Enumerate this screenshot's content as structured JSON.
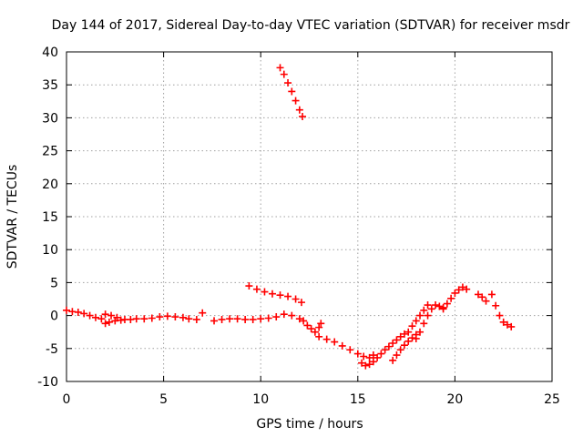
{
  "chart_data": {
    "type": "scatter",
    "title": "Day 144 of 2017, Sidereal Day-to-day VTEC variation (SDTVAR) for receiver msdr",
    "xlabel": "GPS time / hours",
    "ylabel": "SDTVAR / TECUs",
    "xlim": [
      0,
      25
    ],
    "ylim": [
      -10,
      40
    ],
    "xticks": [
      "0",
      "5",
      "10",
      "15",
      "20",
      "25"
    ],
    "yticks": [
      "-10",
      "-5",
      "0",
      "5",
      "10",
      "15",
      "20",
      "25",
      "30",
      "35",
      "40"
    ],
    "grid": true,
    "legend": "none",
    "marker": "+",
    "color": "#ff0000",
    "series": [
      {
        "name": "seg1",
        "x": [
          0.0,
          0.3,
          0.6,
          0.9,
          1.2,
          1.5,
          1.8
        ],
        "y": [
          0.8,
          0.6,
          0.5,
          0.3,
          0.0,
          -0.3,
          -0.5
        ]
      },
      {
        "name": "seg2",
        "x": [
          2.0,
          2.2,
          2.5,
          2.8,
          3.0,
          3.3,
          3.6,
          4.0,
          4.4,
          4.8,
          5.2,
          5.6,
          6.0,
          6.3,
          6.7
        ],
        "y": [
          -1.2,
          -1.0,
          -0.8,
          -0.7,
          -0.6,
          -0.6,
          -0.5,
          -0.5,
          -0.4,
          -0.2,
          -0.1,
          -0.2,
          -0.3,
          -0.5,
          -0.6
        ]
      },
      {
        "name": "seg3",
        "x": [
          2.0,
          2.3,
          2.6
        ],
        "y": [
          0.2,
          0.0,
          -0.3
        ]
      },
      {
        "name": "seg4",
        "x": [
          7.0
        ],
        "y": [
          0.4
        ]
      },
      {
        "name": "seg5",
        "x": [
          7.6,
          8.0,
          8.4,
          8.8,
          9.2,
          9.6,
          10.0,
          10.4,
          10.8,
          11.2,
          11.6,
          12.0,
          12.2
        ],
        "y": [
          -0.8,
          -0.6,
          -0.5,
          -0.5,
          -0.6,
          -0.6,
          -0.5,
          -0.4,
          -0.2,
          0.2,
          0.0,
          -0.5,
          -0.8
        ]
      },
      {
        "name": "seg6",
        "x": [
          9.4,
          9.8,
          10.2,
          10.6,
          11.0,
          11.4,
          11.8,
          12.1
        ],
        "y": [
          4.5,
          4.0,
          3.6,
          3.3,
          3.1,
          2.9,
          2.5,
          2.0
        ]
      },
      {
        "name": "seg7",
        "x": [
          11.0,
          11.2,
          11.4,
          11.6,
          11.8,
          12.0,
          12.15
        ],
        "y": [
          37.6,
          36.6,
          35.3,
          34.0,
          32.6,
          31.2,
          30.2
        ]
      },
      {
        "name": "seg8",
        "x": [
          12.4,
          12.6,
          12.8,
          13.0,
          13.1
        ],
        "y": [
          -1.5,
          -2.0,
          -2.5,
          -1.8,
          -1.2
        ]
      },
      {
        "name": "seg9",
        "x": [
          13.0,
          13.4,
          13.8,
          14.2,
          14.6,
          15.0,
          15.3,
          15.6,
          15.8
        ],
        "y": [
          -3.2,
          -3.6,
          -4.0,
          -4.6,
          -5.2,
          -5.8,
          -6.2,
          -6.4,
          -6.0
        ]
      },
      {
        "name": "seg10",
        "x": [
          15.2,
          15.4,
          15.6,
          15.8,
          16.0,
          16.2,
          16.4,
          16.6,
          16.8,
          17.0,
          17.2,
          17.4
        ],
        "y": [
          -7.2,
          -7.6,
          -7.4,
          -7.0,
          -6.4,
          -5.8,
          -5.2,
          -4.7,
          -4.2,
          -3.7,
          -3.2,
          -2.8
        ]
      },
      {
        "name": "seg11",
        "x": [
          16.8,
          17.0,
          17.2,
          17.4,
          17.6,
          17.8,
          18.0
        ],
        "y": [
          -6.8,
          -6.0,
          -5.2,
          -4.5,
          -3.9,
          -3.4,
          -2.9
        ]
      },
      {
        "name": "seg12",
        "x": [
          17.6,
          17.8,
          18.0,
          18.2,
          18.4,
          18.6
        ],
        "y": [
          -2.5,
          -1.6,
          -0.8,
          0.0,
          0.8,
          1.6
        ]
      },
      {
        "name": "seg13",
        "x": [
          18.0,
          18.2,
          18.4,
          18.6,
          18.8,
          19.0,
          19.2,
          19.4
        ],
        "y": [
          -3.5,
          -2.5,
          -1.2,
          0.0,
          1.0,
          1.6,
          1.4,
          1.0
        ]
      },
      {
        "name": "seg14",
        "x": [
          19.4,
          19.6,
          19.8,
          20.0,
          20.2,
          20.4,
          20.6
        ],
        "y": [
          1.2,
          1.8,
          2.6,
          3.4,
          3.9,
          4.3,
          4.0
        ]
      },
      {
        "name": "seg15",
        "x": [
          21.2,
          21.4,
          21.6
        ],
        "y": [
          3.2,
          2.8,
          2.2
        ]
      },
      {
        "name": "seg16",
        "x": [
          21.9,
          22.1,
          22.3,
          22.5,
          22.7,
          22.9
        ],
        "y": [
          3.2,
          1.5,
          0.0,
          -1.0,
          -1.4,
          -1.7
        ]
      }
    ]
  }
}
